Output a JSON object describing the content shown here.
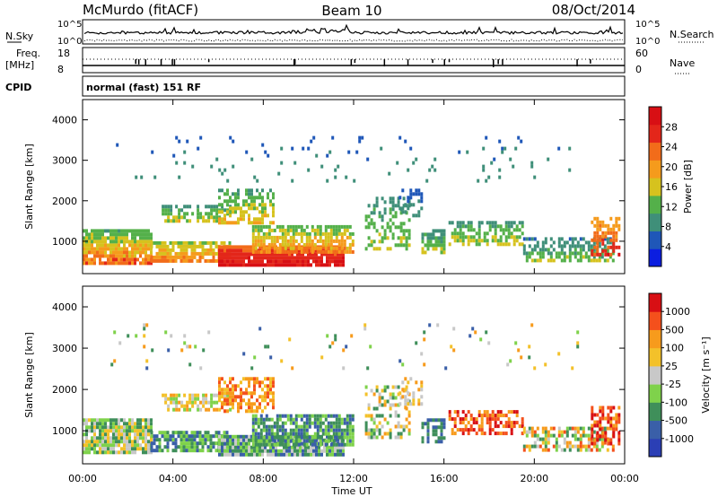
{
  "header": {
    "station": "McMurdo (fitACF)",
    "beam": "Beam 10",
    "date": "08/Oct/2014"
  },
  "left_labels": {
    "nsky": "N.Sky",
    "freq": "Freq.",
    "freq_unit": "[MHz]",
    "cpid": "CPID"
  },
  "right_labels": {
    "nsearch": "N.Search",
    "nave": "Nave"
  },
  "noise_axis": {
    "left_top": "10^5",
    "left_bottom": "10^0",
    "right_top": "10^5",
    "right_bottom": "10^0"
  },
  "freq_axis": {
    "left_top": "18",
    "left_bottom": "8",
    "right_top": "60",
    "right_bottom": "0"
  },
  "cpid_text": "normal (fast) 151 RF",
  "colors": {
    "power_scale": [
      "#0b1ee0",
      "#1f57b8",
      "#3f8f79",
      "#54b04a",
      "#d6c21e",
      "#f59b1c",
      "#f26c1a",
      "#e3261a",
      "#d80f14"
    ],
    "velocity_scale": [
      "#d80f14",
      "#f4501c",
      "#f79b1c",
      "#f3c12a",
      "#c8c8c8",
      "#7fd24b",
      "#3f8f5a",
      "#3a5fa8",
      "#2b3fb5"
    ]
  },
  "chart_data": [
    {
      "type": "heatmap",
      "name": "power-panel",
      "ylabel": "Slant Range [km]",
      "xlabel": "Time UT",
      "x_ticks": [
        "00:00",
        "04:00",
        "08:00",
        "12:00",
        "16:00",
        "20:00",
        "00:00"
      ],
      "y_ticks": [
        1000,
        2000,
        3000,
        4000
      ],
      "ylim": [
        200,
        4500
      ],
      "xlim_hours": [
        0,
        24
      ],
      "colorbar": {
        "label": "Power [dB]",
        "ticks": [
          "4",
          "8",
          "12",
          "16",
          "20",
          "24",
          "28"
        ],
        "range": [
          0,
          30
        ]
      }
    },
    {
      "type": "heatmap",
      "name": "velocity-panel",
      "ylabel": "Slant Range [km]",
      "xlabel": "Time UT",
      "x_ticks": [
        "00:00",
        "04:00",
        "08:00",
        "12:00",
        "16:00",
        "20:00",
        "00:00"
      ],
      "y_ticks": [
        1000,
        2000,
        3000,
        4000
      ],
      "ylim": [
        200,
        4500
      ],
      "xlim_hours": [
        0,
        24
      ],
      "colorbar": {
        "label": "Velocity [m s⁻¹]",
        "ticks": [
          "1000",
          "500",
          "100",
          "25",
          "-25",
          "-100",
          "-500",
          "-1000"
        ]
      }
    }
  ]
}
